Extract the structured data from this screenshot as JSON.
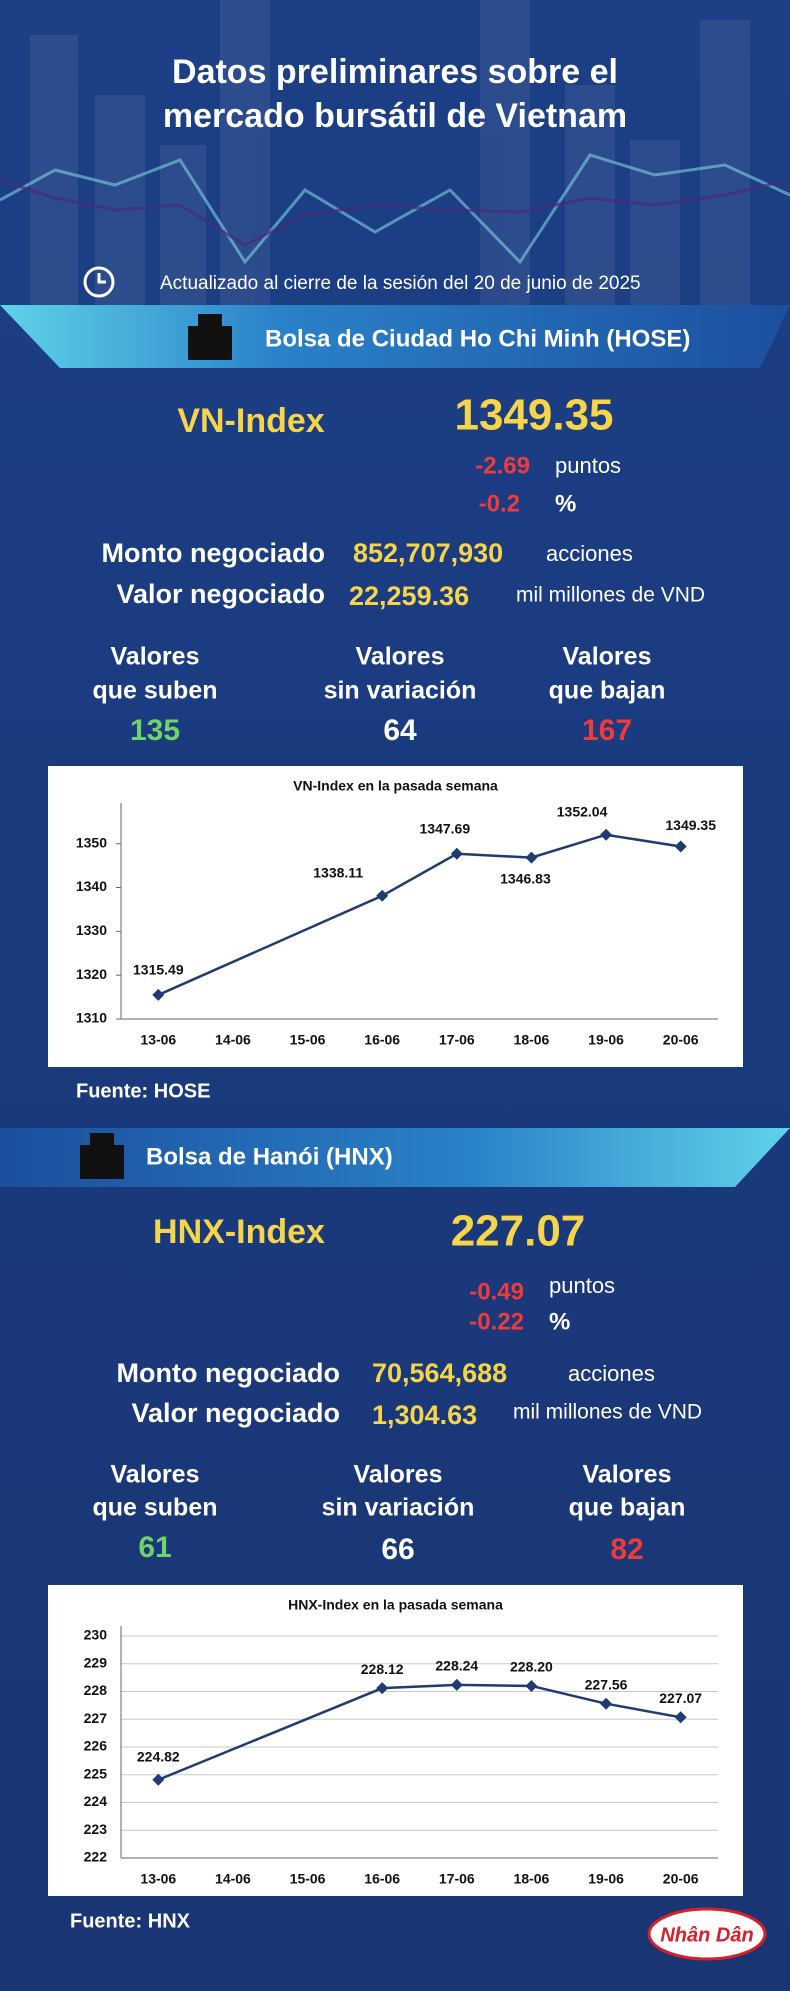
{
  "header": {
    "title": [
      "Datos preliminares sobre el",
      "mercado bursátil de Vietnam"
    ],
    "updated": "Actualizado al cierre de la sesión del 20 de junio de 2025"
  },
  "sections": [
    {
      "exchange": "Bolsa de Ciudad Ho Chi Minh (HOSE)",
      "index_name": "VN-Index",
      "index_value": "1349.35",
      "change_points": "-2.69",
      "points_unit": "puntos",
      "change_pct": "-0.2",
      "pct_unit": "%",
      "volume_label": "Monto negociado",
      "volume": "852,707,930",
      "volume_unit": "acciones",
      "value_label": "Valor negociado",
      "value": "22,259.36",
      "value_unit": "mil millones de VND",
      "up_label": [
        "Valores",
        "que suben"
      ],
      "up": "135",
      "flat_label": [
        "Valores",
        "sin variación"
      ],
      "flat": "64",
      "down_label": [
        "Valores",
        "que bajan"
      ],
      "down": "167",
      "source": "Fuente: HOSE"
    },
    {
      "exchange": "Bolsa de Hanói (HNX)",
      "index_name": "HNX-Index",
      "index_value": "227.07",
      "change_points": "-0.49",
      "points_unit": "puntos",
      "change_pct": "-0.22",
      "pct_unit": "%",
      "volume_label": "Monto negociado",
      "volume": "70,564,688",
      "volume_unit": "acciones",
      "value_label": "Valor negociado",
      "value": "1,304.63",
      "value_unit": "mil millones de VND",
      "up_label": [
        "Valores",
        "que suben"
      ],
      "up": "61",
      "flat_label": [
        "Valores",
        "sin variación"
      ],
      "flat": "66",
      "down_label": [
        "Valores",
        "que bajan"
      ],
      "down": "82",
      "source": "Fuente:  HNX"
    }
  ],
  "chart_data": [
    {
      "type": "line",
      "title": "VN-Index en la pasada semana",
      "xticks": [
        "13-06",
        "14-06",
        "15-06",
        "16-06",
        "17-06",
        "18-06",
        "19-06",
        "20-06"
      ],
      "x": [
        "13-06",
        "16-06",
        "17-06",
        "18-06",
        "19-06",
        "20-06"
      ],
      "values": [
        1315.49,
        1338.11,
        1347.69,
        1346.83,
        1352.04,
        1349.35
      ],
      "color": "#1f3b73",
      "ylim": [
        1310,
        1357
      ],
      "yticks": [
        1310,
        1320,
        1330,
        1340,
        1350
      ],
      "grid": false
    },
    {
      "type": "line",
      "title": "HNX-Index en la pasada semana",
      "xticks": [
        "13-06",
        "14-06",
        "15-06",
        "16-06",
        "17-06",
        "18-06",
        "19-06",
        "20-06"
      ],
      "x": [
        "13-06",
        "16-06",
        "17-06",
        "18-06",
        "19-06",
        "20-06"
      ],
      "values": [
        224.82,
        228.12,
        228.24,
        228.2,
        227.56,
        227.07
      ],
      "value_labels": [
        "224.82",
        "228.12",
        "228.24",
        "228.20",
        "227.56",
        "227.07"
      ],
      "color": "#1f3b73",
      "ylim": [
        222,
        230
      ],
      "yticks": [
        222,
        223,
        224,
        225,
        226,
        227,
        228,
        229,
        230
      ],
      "grid": true
    }
  ],
  "logo": "Nhân Dân"
}
